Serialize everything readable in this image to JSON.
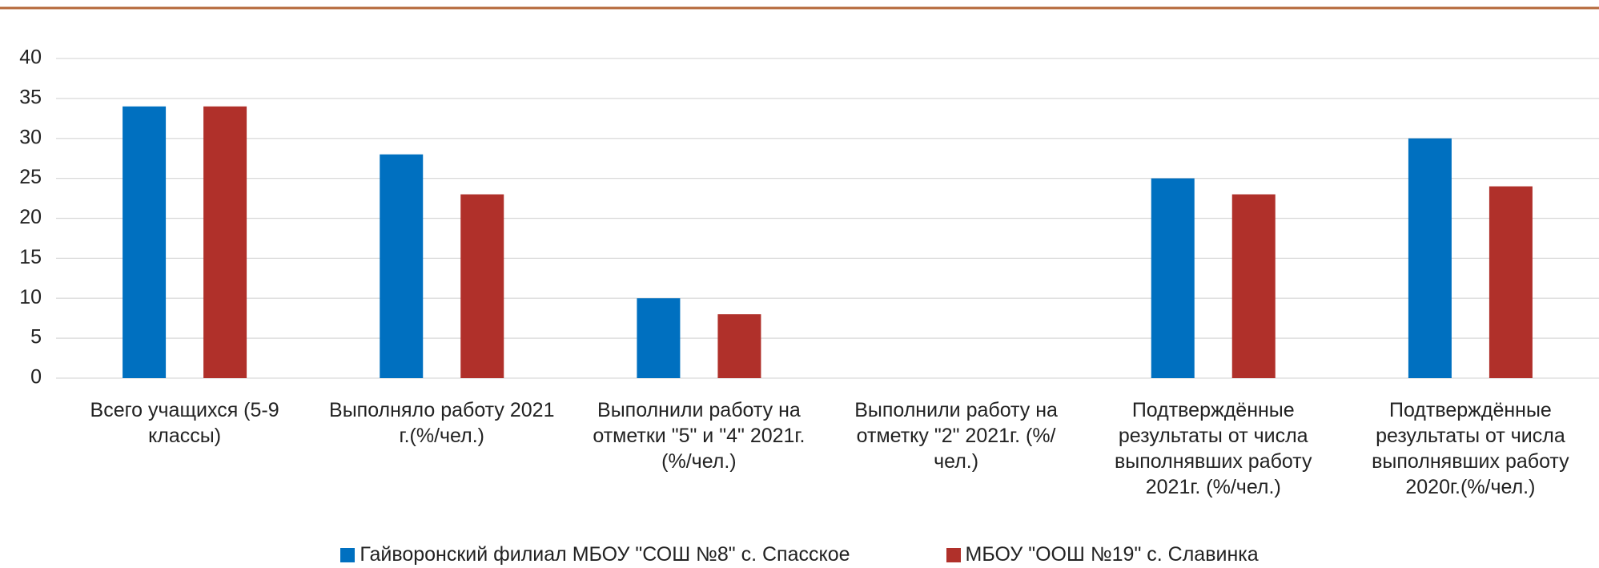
{
  "chart_data": {
    "type": "bar",
    "categories": [
      "Всего учащихся (5-9 классы)",
      "Выполняло работу 2021 г.(%/чел.)",
      "Выполнили работу на отметки \"5\" и \"4\" 2021г. (%/чел.)",
      "Выполнили работу на отметку \"2\" 2021г. (%/чел.)",
      "Подтверждённые результаты от числа выполнявших работу 2021г. (%/чел.)",
      "Подтверждённые результаты от числа выполнявших работу 2020г.(%/чел.)"
    ],
    "series": [
      {
        "name": "Гайворонский филиал МБОУ \"СОШ №8\" с. Спасское",
        "color": "#0070c0",
        "values": [
          34,
          28,
          10,
          0,
          25,
          30
        ]
      },
      {
        "name": "МБОУ \"ООШ №19\" с. Славинка",
        "color": "#b0302a",
        "values": [
          34,
          23,
          8,
          0,
          23,
          24
        ]
      }
    ],
    "ylim": [
      0,
      40
    ],
    "yticks": [
      0,
      5,
      10,
      15,
      20,
      25,
      30,
      35,
      40
    ],
    "grid": true,
    "legend": "bottom"
  }
}
